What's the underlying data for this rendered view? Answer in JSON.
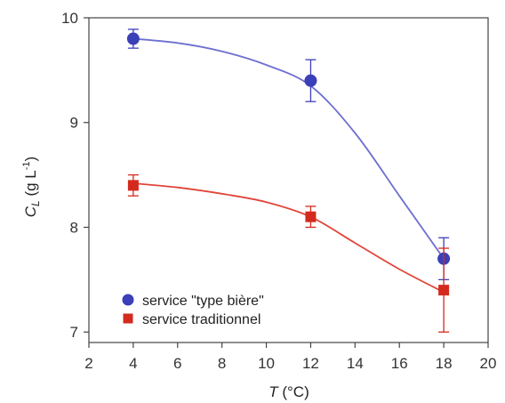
{
  "chart_data": {
    "type": "scatter",
    "xlabel": {
      "symbol": "T",
      "unit": " (°C)"
    },
    "ylabel": {
      "symbol": "C",
      "subscript": "L",
      "unit": " (g L",
      "exponent": "-1",
      "close": ")"
    },
    "xlim": [
      2,
      20
    ],
    "ylim": [
      6.9,
      10
    ],
    "xticks": [
      2,
      4,
      6,
      8,
      10,
      12,
      14,
      16,
      18,
      20
    ],
    "yticks": [
      7,
      8,
      9,
      10
    ],
    "grid": false,
    "legend_position": "bottom-left",
    "series": [
      {
        "name": "service \"type bière\"",
        "marker": "circle",
        "color": "#3b3fb8",
        "line_color": "#6d70cf",
        "points": [
          {
            "x": 4,
            "y": 9.8,
            "err": 0.09
          },
          {
            "x": 12,
            "y": 9.4,
            "err": 0.2
          },
          {
            "x": 18,
            "y": 7.7,
            "err": 0.2
          }
        ],
        "curve": [
          [
            4,
            9.8
          ],
          [
            6,
            9.76
          ],
          [
            8,
            9.68
          ],
          [
            10,
            9.55
          ],
          [
            12,
            9.35
          ],
          [
            14,
            8.9
          ],
          [
            16,
            8.3
          ],
          [
            18,
            7.7
          ]
        ]
      },
      {
        "name": "service traditionnel",
        "marker": "square",
        "color": "#d42a1e",
        "line_color": "#e0463a",
        "points": [
          {
            "x": 4,
            "y": 8.4,
            "err": 0.1
          },
          {
            "x": 12,
            "y": 8.1,
            "err": 0.1
          },
          {
            "x": 18,
            "y": 7.4,
            "err": 0.4
          }
        ],
        "curve": [
          [
            4,
            8.42
          ],
          [
            6,
            8.38
          ],
          [
            8,
            8.32
          ],
          [
            10,
            8.24
          ],
          [
            12,
            8.1
          ],
          [
            14,
            7.85
          ],
          [
            16,
            7.6
          ],
          [
            18,
            7.38
          ]
        ]
      }
    ]
  }
}
